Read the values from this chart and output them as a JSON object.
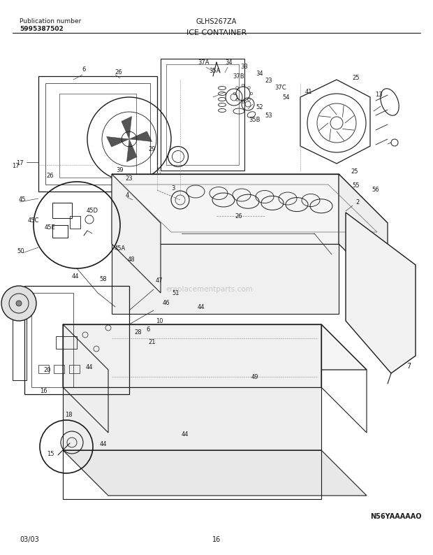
{
  "title": "ICE CONTAINER",
  "model": "GLHS267ZA",
  "pub_label": "Publication number",
  "pub_number": "5995387502",
  "diagram_code": "N56YAAAAAO",
  "date": "03/03",
  "page": "16",
  "bg_color": "#ffffff",
  "lc": "#1a1a1a",
  "tc": "#1a1a1a",
  "watermark": "ereplacementparts.com",
  "fig_w": 6.2,
  "fig_h": 7.94,
  "dpi": 100
}
